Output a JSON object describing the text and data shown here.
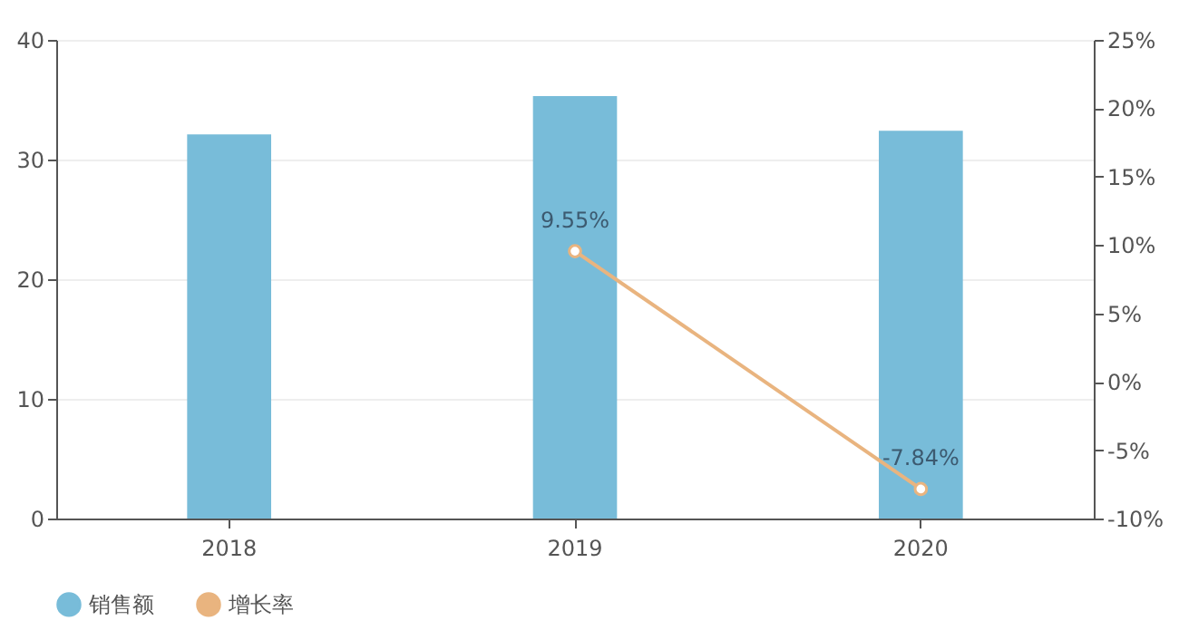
{
  "chart_data": {
    "type": "bar",
    "categories": [
      "2018",
      "2019",
      "2020"
    ],
    "series": [
      {
        "name": "销售额",
        "color": "#78bcd9",
        "values": [
          32.1,
          35.3,
          32.4
        ]
      },
      {
        "name": "增长率",
        "type": "line",
        "axis": "y2",
        "color": "#e9b47f",
        "values": [
          null,
          9.55,
          -7.84
        ],
        "value_labels": [
          null,
          "9.55%",
          "-7.84%"
        ]
      }
    ],
    "ylim": [
      0,
      40
    ],
    "yticks": [
      0,
      10,
      20,
      30,
      40
    ],
    "y2lim": [
      -10,
      25
    ],
    "y2ticks": [
      {
        "value": -10,
        "label": "-10%"
      },
      {
        "value": -5,
        "label": "-5%"
      },
      {
        "value": 0,
        "label": "0%"
      },
      {
        "value": 5,
        "label": "5%"
      },
      {
        "value": 10,
        "label": "10%"
      },
      {
        "value": 15,
        "label": "15%"
      },
      {
        "value": 20,
        "label": "20%"
      },
      {
        "value": 25,
        "label": "25%"
      }
    ],
    "grid": "y",
    "legend": "bottom",
    "marker": "circle"
  }
}
